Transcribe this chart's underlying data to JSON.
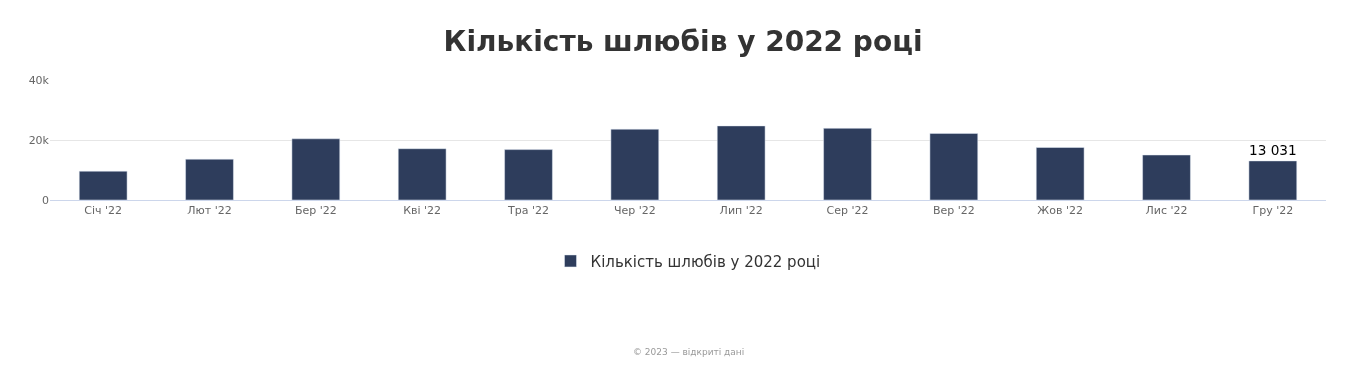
{
  "chart_data": {
    "type": "bar",
    "title": "Кількість шлюбів у 2022 році",
    "categories": [
      "Січ '22",
      "Лют '22",
      "Бер '22",
      "Кві '22",
      "Тра '22",
      "Чер '22",
      "Лип '22",
      "Сер '22",
      "Вер '22",
      "Жов '22",
      "Лис '22",
      "Гру '22"
    ],
    "series": [
      {
        "name": "Кількість шлюбів у 2022 році",
        "color": "#2e3d5c",
        "values": [
          9600,
          13600,
          20400,
          17100,
          16800,
          23600,
          24700,
          23900,
          22200,
          17500,
          15000,
          13031
        ],
        "value_labels": [
          null,
          null,
          null,
          null,
          null,
          null,
          null,
          null,
          null,
          null,
          null,
          "13 031"
        ]
      }
    ],
    "ylim": [
      0,
      40000
    ],
    "yticks": [
      {
        "value": 0,
        "label": "0"
      },
      {
        "value": 20000,
        "label": "20k"
      },
      {
        "value": 40000,
        "label": "40k"
      }
    ],
    "grid": "y",
    "legend": "bottom",
    "annotations": [
      "© 2023 — відкриті дані"
    ]
  }
}
